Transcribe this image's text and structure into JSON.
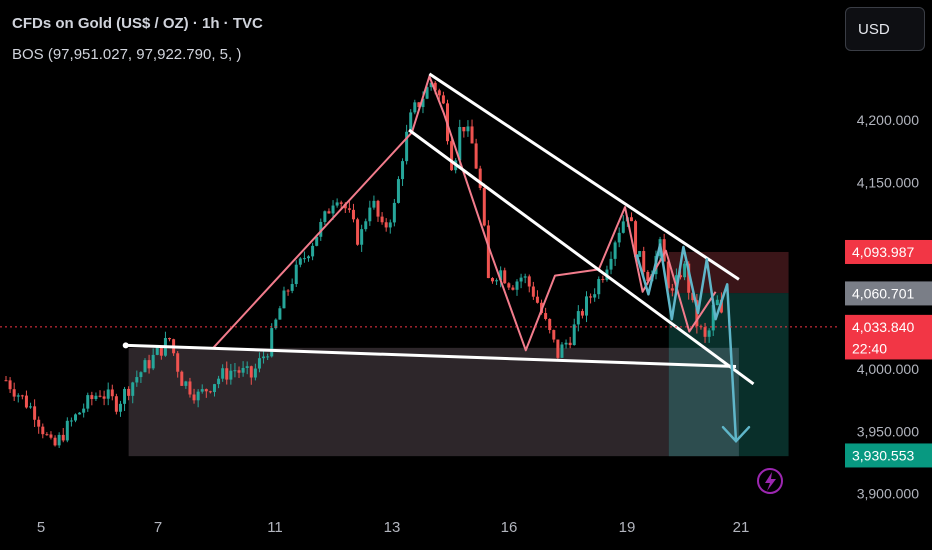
{
  "header": {
    "title": "CFDs on Gold (US$ / OZ) · 1h · TVC",
    "indicator": "BOS (97,951.027, 97,922.790, 5, )"
  },
  "currency_button": {
    "label": "USD"
  },
  "colors": {
    "background": "#000000",
    "up_candle": "#26a69a",
    "down_candle": "#ef5350",
    "zigzag": "#f27c8c",
    "channel": "#ffffff",
    "projection": "#5fb6c9",
    "stop_zone": "#3a1518",
    "target_zone": "#0b3b34",
    "demand_zone": "#3c3338",
    "badge_red": "#f23645",
    "badge_gray": "#7a7e87",
    "badge_green": "#089981",
    "lightning": "#9c27b0"
  },
  "icons": {
    "alert": "lightning-icon",
    "arrow": "arrow-down-icon"
  },
  "chart_data": {
    "type": "candlestick",
    "symbol": "CFDs on Gold (US$ / OZ)",
    "interval": "1h",
    "source": "TVC",
    "x_ticks": [
      "5",
      "7",
      "11",
      "13",
      "16",
      "19",
      "21"
    ],
    "y_ticks": [
      "3,900.000",
      "3,950.000",
      "4,000.000",
      "4,150.000",
      "4,200.000"
    ],
    "y_range": [
      3885,
      4240
    ],
    "grid": false,
    "price_labels": [
      {
        "label": "4,093.987",
        "value": 4093.987,
        "style": "red"
      },
      {
        "label": "4,060.701",
        "value": 4060.701,
        "style": "gray"
      },
      {
        "label": "4,033.840",
        "value": 4033.84,
        "style": "red"
      },
      {
        "label": "22:40",
        "value": 4016.5,
        "style": "red"
      },
      {
        "label": "3,930.553",
        "value": 3930.553,
        "style": "green"
      }
    ],
    "last_price": 4033.84,
    "series": [
      {
        "x": 0.0,
        "y": 3991
      },
      {
        "x": 1.0,
        "y": 3965
      },
      {
        "x": 1.6,
        "y": 3935
      },
      {
        "x": 2.0,
        "y": 3950
      },
      {
        "x": 2.6,
        "y": 3968
      },
      {
        "x": 3.2,
        "y": 3982
      },
      {
        "x": 3.8,
        "y": 3972
      },
      {
        "x": 4.4,
        "y": 3992
      },
      {
        "x": 5.0,
        "y": 4008
      },
      {
        "x": 5.6,
        "y": 4024
      },
      {
        "x": 6.0,
        "y": 3992
      },
      {
        "x": 6.6,
        "y": 3978
      },
      {
        "x": 7.2,
        "y": 3992
      },
      {
        "x": 7.8,
        "y": 4000
      },
      {
        "x": 8.4,
        "y": 3994
      },
      {
        "x": 9.0,
        "y": 4018
      },
      {
        "x": 9.4,
        "y": 4050
      },
      {
        "x": 9.8,
        "y": 4072
      },
      {
        "x": 10.4,
        "y": 4098
      },
      {
        "x": 10.9,
        "y": 4120
      },
      {
        "x": 11.3,
        "y": 4142
      },
      {
        "x": 11.7,
        "y": 4126
      },
      {
        "x": 12.1,
        "y": 4102
      },
      {
        "x": 12.5,
        "y": 4138
      },
      {
        "x": 12.9,
        "y": 4110
      },
      {
        "x": 13.3,
        "y": 4130
      },
      {
        "x": 13.6,
        "y": 4175
      },
      {
        "x": 13.9,
        "y": 4205
      },
      {
        "x": 14.3,
        "y": 4220
      },
      {
        "x": 14.6,
        "y": 4232
      },
      {
        "x": 15.0,
        "y": 4210
      },
      {
        "x": 15.3,
        "y": 4160
      },
      {
        "x": 15.6,
        "y": 4200
      },
      {
        "x": 16.0,
        "y": 4178
      },
      {
        "x": 16.3,
        "y": 4135
      },
      {
        "x": 16.5,
        "y": 4070
      },
      {
        "x": 16.9,
        "y": 4080
      },
      {
        "x": 17.3,
        "y": 4068
      },
      {
        "x": 17.7,
        "y": 4075
      },
      {
        "x": 18.1,
        "y": 4060
      },
      {
        "x": 18.5,
        "y": 4035
      },
      {
        "x": 18.9,
        "y": 4012
      },
      {
        "x": 19.3,
        "y": 4025
      },
      {
        "x": 19.7,
        "y": 4045
      },
      {
        "x": 20.1,
        "y": 4062
      },
      {
        "x": 20.5,
        "y": 4080
      },
      {
        "x": 20.9,
        "y": 4108
      },
      {
        "x": 21.3,
        "y": 4128
      },
      {
        "x": 21.6,
        "y": 4092
      },
      {
        "x": 22.0,
        "y": 4075
      },
      {
        "x": 22.4,
        "y": 4098
      },
      {
        "x": 22.8,
        "y": 4058
      },
      {
        "x": 23.2,
        "y": 4085
      },
      {
        "x": 23.6,
        "y": 4040
      },
      {
        "x": 24.0,
        "y": 4020
      },
      {
        "x": 24.3,
        "y": 4058
      },
      {
        "x": 24.6,
        "y": 4033
      }
    ],
    "annotations": {
      "zigzag": [
        {
          "x": 7.1,
          "y": 4017
        },
        {
          "x": 13.9,
          "y": 4190
        },
        {
          "x": 14.5,
          "y": 4235
        },
        {
          "x": 15.0,
          "y": 4205
        },
        {
          "x": 16.5,
          "y": 4100
        },
        {
          "x": 17.8,
          "y": 4015
        },
        {
          "x": 18.8,
          "y": 4075
        },
        {
          "x": 20.3,
          "y": 4080
        },
        {
          "x": 21.2,
          "y": 4130
        },
        {
          "x": 21.8,
          "y": 4062
        },
        {
          "x": 22.6,
          "y": 4095
        },
        {
          "x": 23.4,
          "y": 4030
        },
        {
          "x": 24.3,
          "y": 4062
        }
      ],
      "projection": [
        {
          "x": 21.6,
          "y": 4092
        },
        {
          "x": 22.0,
          "y": 4060
        },
        {
          "x": 22.4,
          "y": 4100
        },
        {
          "x": 22.8,
          "y": 4040
        },
        {
          "x": 23.2,
          "y": 4098
        },
        {
          "x": 23.7,
          "y": 4045
        },
        {
          "x": 24.0,
          "y": 4088
        },
        {
          "x": 24.3,
          "y": 4040
        },
        {
          "x": 24.7,
          "y": 4068
        },
        {
          "x": 25.0,
          "y": 3942
        }
      ],
      "channel_upper": [
        {
          "x": 14.5,
          "y": 4237
        },
        {
          "x": 25.1,
          "y": 4072
        }
      ],
      "channel_lower": [
        {
          "x": 13.8,
          "y": 4192
        },
        {
          "x": 25.6,
          "y": 3988
        }
      ],
      "support_line": [
        {
          "x": 4.1,
          "y": 4019
        },
        {
          "x": 25.0,
          "y": 4002
        }
      ],
      "demand_zone": {
        "x0": 4.2,
        "x1": 25.1,
        "y0": 3930,
        "y1": 4017
      },
      "stop_zone": {
        "x0": 22.7,
        "x1": 26.8,
        "y0": 4061,
        "y1": 4094
      },
      "target_zone": {
        "x0": 22.7,
        "x1": 26.8,
        "y0": 3930,
        "y1": 4061
      },
      "entry_band": {
        "x0": 22.7,
        "x1": 25.1,
        "y0": 3930,
        "y1": 4017
      }
    }
  }
}
